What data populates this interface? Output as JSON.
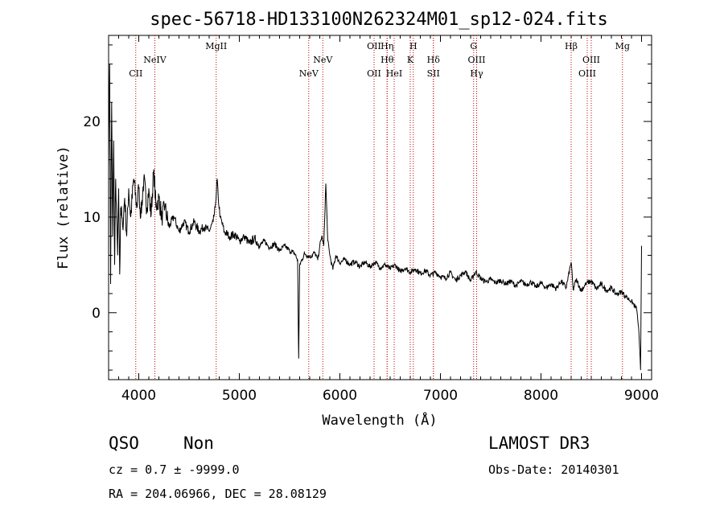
{
  "chart_data": {
    "type": "line",
    "title": "spec-56718-HD133100N262324M01_sp12-024.fits",
    "xlabel": "Wavelength (Å)",
    "ylabel": "Flux (relative)",
    "xlim": [
      3700,
      9100
    ],
    "ylim": [
      -7,
      29
    ],
    "xticks": [
      4000,
      5000,
      6000,
      7000,
      8000,
      9000
    ],
    "yticks": [
      0,
      10,
      20
    ],
    "series": [
      {
        "points": [
          [
            3700,
            15
          ],
          [
            3710,
            26
          ],
          [
            3720,
            3
          ],
          [
            3730,
            22
          ],
          [
            3740,
            8
          ],
          [
            3750,
            18
          ],
          [
            3760,
            5
          ],
          [
            3770,
            14
          ],
          [
            3780,
            10
          ],
          [
            3790,
            6
          ],
          [
            3800,
            13
          ],
          [
            3810,
            4
          ],
          [
            3820,
            11
          ],
          [
            3840,
            9
          ],
          [
            3860,
            12
          ],
          [
            3880,
            8
          ],
          [
            3900,
            13
          ],
          [
            3920,
            10
          ],
          [
            3950,
            14
          ],
          [
            3980,
            11
          ],
          [
            4000,
            13
          ],
          [
            4020,
            10
          ],
          [
            4050,
            14
          ],
          [
            4080,
            11
          ],
          [
            4100,
            13
          ],
          [
            4120,
            10
          ],
          [
            4150,
            15
          ],
          [
            4170,
            11
          ],
          [
            4200,
            12
          ],
          [
            4230,
            10
          ],
          [
            4260,
            11
          ],
          [
            4300,
            9
          ],
          [
            4350,
            10
          ],
          [
            4400,
            8.5
          ],
          [
            4450,
            9.5
          ],
          [
            4500,
            8.5
          ],
          [
            4550,
            9.5
          ],
          [
            4600,
            8.5
          ],
          [
            4650,
            9
          ],
          [
            4700,
            8.5
          ],
          [
            4740,
            9.5
          ],
          [
            4760,
            11
          ],
          [
            4780,
            14
          ],
          [
            4790,
            12
          ],
          [
            4810,
            10
          ],
          [
            4850,
            8.5
          ],
          [
            4900,
            8
          ],
          [
            4950,
            8.2
          ],
          [
            5000,
            7.5
          ],
          [
            5050,
            8
          ],
          [
            5100,
            7.2
          ],
          [
            5150,
            7.8
          ],
          [
            5200,
            7
          ],
          [
            5250,
            7.5
          ],
          [
            5300,
            6.8
          ],
          [
            5350,
            7.2
          ],
          [
            5400,
            6.5
          ],
          [
            5450,
            7
          ],
          [
            5500,
            6.5
          ],
          [
            5550,
            6.2
          ],
          [
            5580,
            5.5
          ],
          [
            5590,
            -4.8
          ],
          [
            5600,
            5
          ],
          [
            5650,
            6.2
          ],
          [
            5700,
            5.8
          ],
          [
            5750,
            6.3
          ],
          [
            5780,
            5.5
          ],
          [
            5800,
            7
          ],
          [
            5820,
            8
          ],
          [
            5840,
            7
          ],
          [
            5860,
            13.5
          ],
          [
            5880,
            7.5
          ],
          [
            5900,
            6
          ],
          [
            5930,
            4.5
          ],
          [
            5960,
            6
          ],
          [
            6000,
            5.2
          ],
          [
            6050,
            5.6
          ],
          [
            6100,
            5
          ],
          [
            6150,
            5.4
          ],
          [
            6200,
            4.8
          ],
          [
            6250,
            5.3
          ],
          [
            6300,
            4.8
          ],
          [
            6350,
            5.3
          ],
          [
            6400,
            4.7
          ],
          [
            6450,
            5
          ],
          [
            6500,
            4.6
          ],
          [
            6550,
            5
          ],
          [
            6600,
            4.3
          ],
          [
            6650,
            4.7
          ],
          [
            6700,
            4.2
          ],
          [
            6750,
            4.6
          ],
          [
            6800,
            4.1
          ],
          [
            6850,
            4.4
          ],
          [
            6900,
            3.9
          ],
          [
            6950,
            4.2
          ],
          [
            7000,
            3.8
          ],
          [
            7050,
            3.6
          ],
          [
            7100,
            4.2
          ],
          [
            7150,
            3.4
          ],
          [
            7200,
            3.9
          ],
          [
            7250,
            4.3
          ],
          [
            7300,
            3.3
          ],
          [
            7350,
            4.3
          ],
          [
            7400,
            3.6
          ],
          [
            7450,
            3.2
          ],
          [
            7500,
            3.5
          ],
          [
            7550,
            3.1
          ],
          [
            7600,
            3.4
          ],
          [
            7650,
            3
          ],
          [
            7700,
            3.3
          ],
          [
            7750,
            2.8
          ],
          [
            7800,
            3.3
          ],
          [
            7850,
            2.9
          ],
          [
            7900,
            3.2
          ],
          [
            7950,
            2.7
          ],
          [
            8000,
            3.1
          ],
          [
            8050,
            2.6
          ],
          [
            8100,
            3
          ],
          [
            8150,
            2.5
          ],
          [
            8200,
            3.3
          ],
          [
            8250,
            2.6
          ],
          [
            8300,
            5.3
          ],
          [
            8320,
            2.4
          ],
          [
            8350,
            3.5
          ],
          [
            8400,
            2.3
          ],
          [
            8450,
            3.1
          ],
          [
            8500,
            3.3
          ],
          [
            8550,
            2.5
          ],
          [
            8600,
            3
          ],
          [
            8650,
            2.3
          ],
          [
            8700,
            2.6
          ],
          [
            8750,
            1.9
          ],
          [
            8800,
            2.2
          ],
          [
            8850,
            1.6
          ],
          [
            8900,
            1.2
          ],
          [
            8950,
            0.4
          ],
          [
            8970,
            -1.5
          ],
          [
            8990,
            -6
          ],
          [
            9000,
            7
          ]
        ]
      }
    ],
    "lines": [
      {
        "name": "CII",
        "wl": 3970,
        "row": 3
      },
      {
        "name": "NeIV",
        "wl": 4160,
        "row": 2
      },
      {
        "name": "MgII",
        "wl": 4770,
        "row": 1
      },
      {
        "name": "NeV",
        "wl": 5690,
        "row": 3
      },
      {
        "name": "NeV",
        "wl": 5830,
        "row": 2
      },
      {
        "name": "OII",
        "wl": 6340,
        "row": 1
      },
      {
        "name": "OII",
        "wl": 6340,
        "row": 3
      },
      {
        "name": "Hη",
        "wl": 6470,
        "row": 1
      },
      {
        "name": "Hθ",
        "wl": 6470,
        "row": 2
      },
      {
        "name": "HeI",
        "wl": 6540,
        "row": 3
      },
      {
        "name": "H",
        "wl": 6730,
        "row": 1
      },
      {
        "name": "K",
        "wl": 6700,
        "row": 2
      },
      {
        "name": "Hδ",
        "wl": 6930,
        "row": 2
      },
      {
        "name": "SII",
        "wl": 6930,
        "row": 3
      },
      {
        "name": "G",
        "wl": 7330,
        "row": 1
      },
      {
        "name": "OIII",
        "wl": 7360,
        "row": 2
      },
      {
        "name": "Hγ",
        "wl": 7360,
        "row": 3
      },
      {
        "name": "Hβ",
        "wl": 8300,
        "row": 1
      },
      {
        "name": "OIII",
        "wl": 8500,
        "row": 2
      },
      {
        "name": "OIII",
        "wl": 8460,
        "row": 3
      },
      {
        "name": "Mg",
        "wl": 8810,
        "row": 1
      }
    ]
  },
  "info": {
    "class": "QSO",
    "subclass": "Non",
    "survey": "LAMOST DR3",
    "cz": "cz = 0.7 ± -9999.0",
    "obsdate": "Obs-Date: 20140301",
    "radec": "RA = 204.06966, DEC =  28.08129"
  }
}
